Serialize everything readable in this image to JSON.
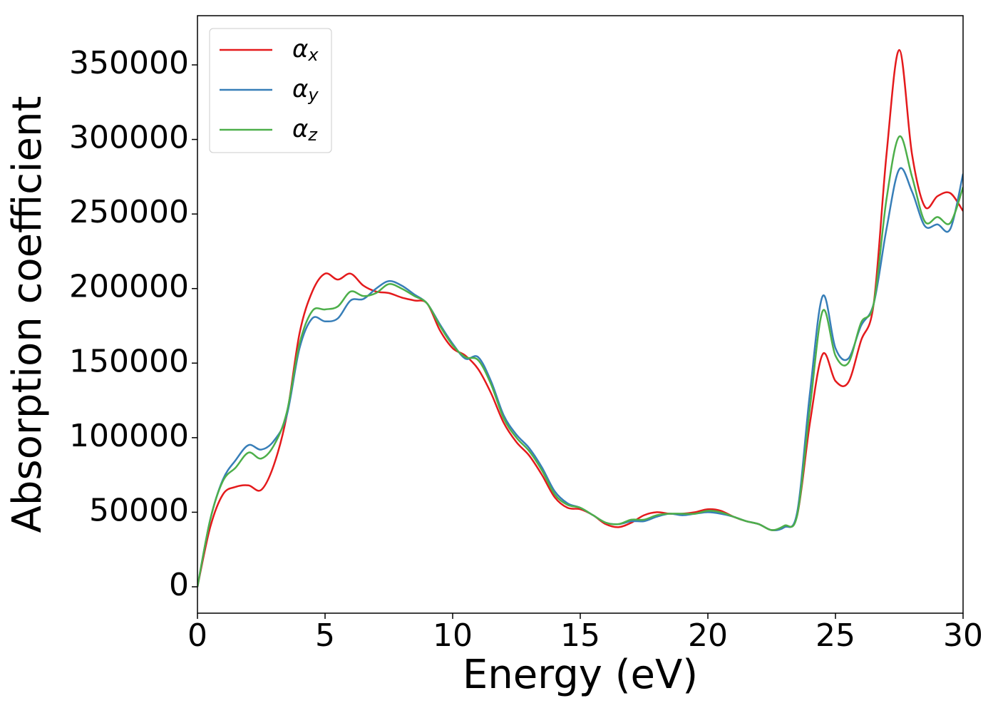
{
  "chart_data": {
    "type": "line",
    "xlabel": "Energy (eV)",
    "ylabel": "Absorption coefficient",
    "x": [
      0,
      0.5,
      1,
      1.5,
      2,
      2.5,
      3,
      3.5,
      4,
      4.5,
      5,
      5.5,
      6,
      6.5,
      7,
      7.5,
      8,
      8.5,
      9,
      9.5,
      10,
      10.5,
      11,
      11.5,
      12,
      12.5,
      13,
      13.5,
      14,
      14.5,
      15,
      15.5,
      16,
      16.5,
      17,
      17.5,
      18,
      18.5,
      19,
      19.5,
      20,
      20.5,
      21,
      21.5,
      22,
      22.5,
      23,
      23.5,
      24,
      24.5,
      25,
      25.5,
      26,
      26.5,
      27,
      27.5,
      28,
      28.5,
      29,
      29.5,
      30
    ],
    "series": [
      {
        "name": "αx",
        "color": "#e41a1c",
        "values": [
          0,
          40000,
          62000,
          67000,
          68000,
          65000,
          82000,
          115000,
          170000,
          198000,
          210000,
          206000,
          210000,
          202000,
          198000,
          197000,
          194000,
          192000,
          190000,
          172000,
          160000,
          155000,
          146000,
          130000,
          110000,
          97000,
          88000,
          75000,
          60000,
          53000,
          52000,
          48000,
          42000,
          40000,
          43000,
          48000,
          50000,
          49000,
          49000,
          50000,
          52000,
          51000,
          47000,
          44000,
          42000,
          38000,
          40000,
          48000,
          110000,
          156000,
          138000,
          137000,
          165000,
          190000,
          290000,
          360000,
          290000,
          255000,
          262000,
          264000,
          252000
        ]
      },
      {
        "name": "αy",
        "color": "#377eb8",
        "values": [
          0,
          45000,
          72000,
          85000,
          95000,
          92000,
          98000,
          115000,
          160000,
          180000,
          178000,
          180000,
          192000,
          193000,
          200000,
          205000,
          202000,
          196000,
          190000,
          176000,
          163000,
          153000,
          154000,
          138000,
          115000,
          102000,
          93000,
          80000,
          64000,
          56000,
          53000,
          48000,
          43000,
          42000,
          44000,
          44000,
          47000,
          49000,
          48000,
          49000,
          50000,
          49000,
          47000,
          44000,
          42000,
          38000,
          40000,
          50000,
          130000,
          195000,
          160000,
          153000,
          175000,
          190000,
          240000,
          280000,
          265000,
          242000,
          243000,
          240000,
          277000
        ]
      },
      {
        "name": "αz",
        "color": "#4daf4a",
        "values": [
          0,
          45000,
          71000,
          80000,
          90000,
          86000,
          95000,
          117000,
          163000,
          185000,
          186000,
          188000,
          198000,
          195000,
          197000,
          203000,
          200000,
          195000,
          190000,
          175000,
          162000,
          154000,
          152000,
          136000,
          113000,
          100000,
          91000,
          78000,
          62000,
          55000,
          53000,
          48000,
          43000,
          42000,
          45000,
          45000,
          48000,
          49000,
          49000,
          49000,
          51000,
          50000,
          47000,
          44000,
          42000,
          38000,
          41000,
          48000,
          120000,
          185000,
          155000,
          150000,
          177000,
          190000,
          260000,
          302000,
          275000,
          245000,
          248000,
          244000,
          268000
        ]
      }
    ],
    "xlim": [
      0,
      30
    ],
    "xticks": [
      0,
      5,
      10,
      15,
      20,
      25,
      30
    ],
    "ylim": [
      -17700,
      383000
    ],
    "yticks": [
      0,
      50000,
      100000,
      150000,
      200000,
      250000,
      300000,
      350000
    ],
    "legend": "upper left"
  }
}
